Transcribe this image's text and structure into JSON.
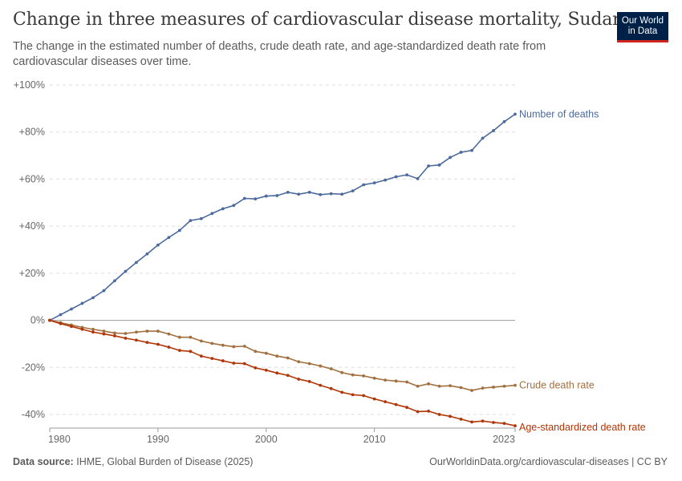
{
  "header": {
    "title": "Change in three measures of cardiovascular disease mortality, Sudan",
    "subtitle": "The change in the estimated number of deaths, crude death rate, and age-standardized death rate from cardiovascular diseases over time."
  },
  "logo": {
    "line1": "Our World",
    "line2": "in Data",
    "bg_color": "#002147",
    "accent_color": "#ce261e"
  },
  "footer": {
    "source_label": "Data source:",
    "source_text": "IHME, Global Burden of Disease (2025)",
    "url_text": "OurWorldinData.org/cardiovascular-diseases | CC BY"
  },
  "chart_data": {
    "type": "line",
    "title": "Change in three measures of cardiovascular disease mortality, Sudan",
    "xlabel": "",
    "ylabel": "",
    "xlim": [
      1980,
      2023
    ],
    "ylim": [
      -40,
      100
    ],
    "x_ticks": [
      1980,
      1990,
      2000,
      2010,
      2023
    ],
    "y_ticks": [
      -40,
      -20,
      0,
      20,
      40,
      60,
      80,
      100
    ],
    "y_tick_labels": [
      "-40%",
      "-20%",
      "0%",
      "+20%",
      "+40%",
      "+60%",
      "+80%",
      "+100%"
    ],
    "grid": true,
    "legend": "inline labels at right end of lines",
    "x": [
      1980,
      1981,
      1982,
      1983,
      1984,
      1985,
      1986,
      1987,
      1988,
      1989,
      1990,
      1991,
      1992,
      1993,
      1994,
      1995,
      1996,
      1997,
      1998,
      1999,
      2000,
      2001,
      2002,
      2003,
      2004,
      2005,
      2006,
      2007,
      2008,
      2009,
      2010,
      2011,
      2012,
      2013,
      2014,
      2015,
      2016,
      2017,
      2018,
      2019,
      2020,
      2021,
      2022,
      2023
    ],
    "series": [
      {
        "name": "Number of deaths",
        "color": "#4c6a9c",
        "values": [
          0,
          2.4,
          4.8,
          7.2,
          9.6,
          12.6,
          16.8,
          20.8,
          24.6,
          28.2,
          32.0,
          35.2,
          38.2,
          42.4,
          43.2,
          45.4,
          47.4,
          48.8,
          51.8,
          51.6,
          52.8,
          53.0,
          54.4,
          53.6,
          54.4,
          53.4,
          53.8,
          53.6,
          55.0,
          57.6,
          58.4,
          59.6,
          61.0,
          61.8,
          60.2,
          65.6,
          66.0,
          69.2,
          71.4,
          72.2,
          77.4,
          80.6,
          84.4,
          87.6
        ]
      },
      {
        "name": "Crude death rate",
        "color": "#a2703f",
        "values": [
          0,
          -1.0,
          -2.0,
          -3.0,
          -3.8,
          -4.6,
          -5.4,
          -5.6,
          -5.0,
          -4.6,
          -4.6,
          -5.8,
          -7.2,
          -7.2,
          -8.8,
          -9.8,
          -10.6,
          -11.2,
          -11.0,
          -13.2,
          -14.0,
          -15.2,
          -16.0,
          -17.6,
          -18.4,
          -19.4,
          -20.6,
          -22.2,
          -23.2,
          -23.6,
          -24.6,
          -25.4,
          -25.8,
          -26.2,
          -28.0,
          -27.0,
          -28.0,
          -27.8,
          -28.6,
          -29.8,
          -28.8,
          -28.4,
          -28.0,
          -27.6
        ]
      },
      {
        "name": "Age-standardized death rate",
        "color": "#b13507",
        "values": [
          0,
          -1.4,
          -2.6,
          -3.8,
          -5.0,
          -5.8,
          -6.6,
          -7.6,
          -8.4,
          -9.4,
          -10.2,
          -11.4,
          -12.8,
          -13.2,
          -15.2,
          -16.2,
          -17.2,
          -18.2,
          -18.4,
          -20.2,
          -21.2,
          -22.4,
          -23.4,
          -25.0,
          -26.0,
          -27.6,
          -29.0,
          -30.6,
          -31.6,
          -32.0,
          -33.4,
          -34.6,
          -35.8,
          -37.0,
          -38.8,
          -38.6,
          -40.0,
          -40.8,
          -42.0,
          -43.2,
          -42.8,
          -43.4,
          -43.8,
          -44.8
        ]
      }
    ]
  }
}
